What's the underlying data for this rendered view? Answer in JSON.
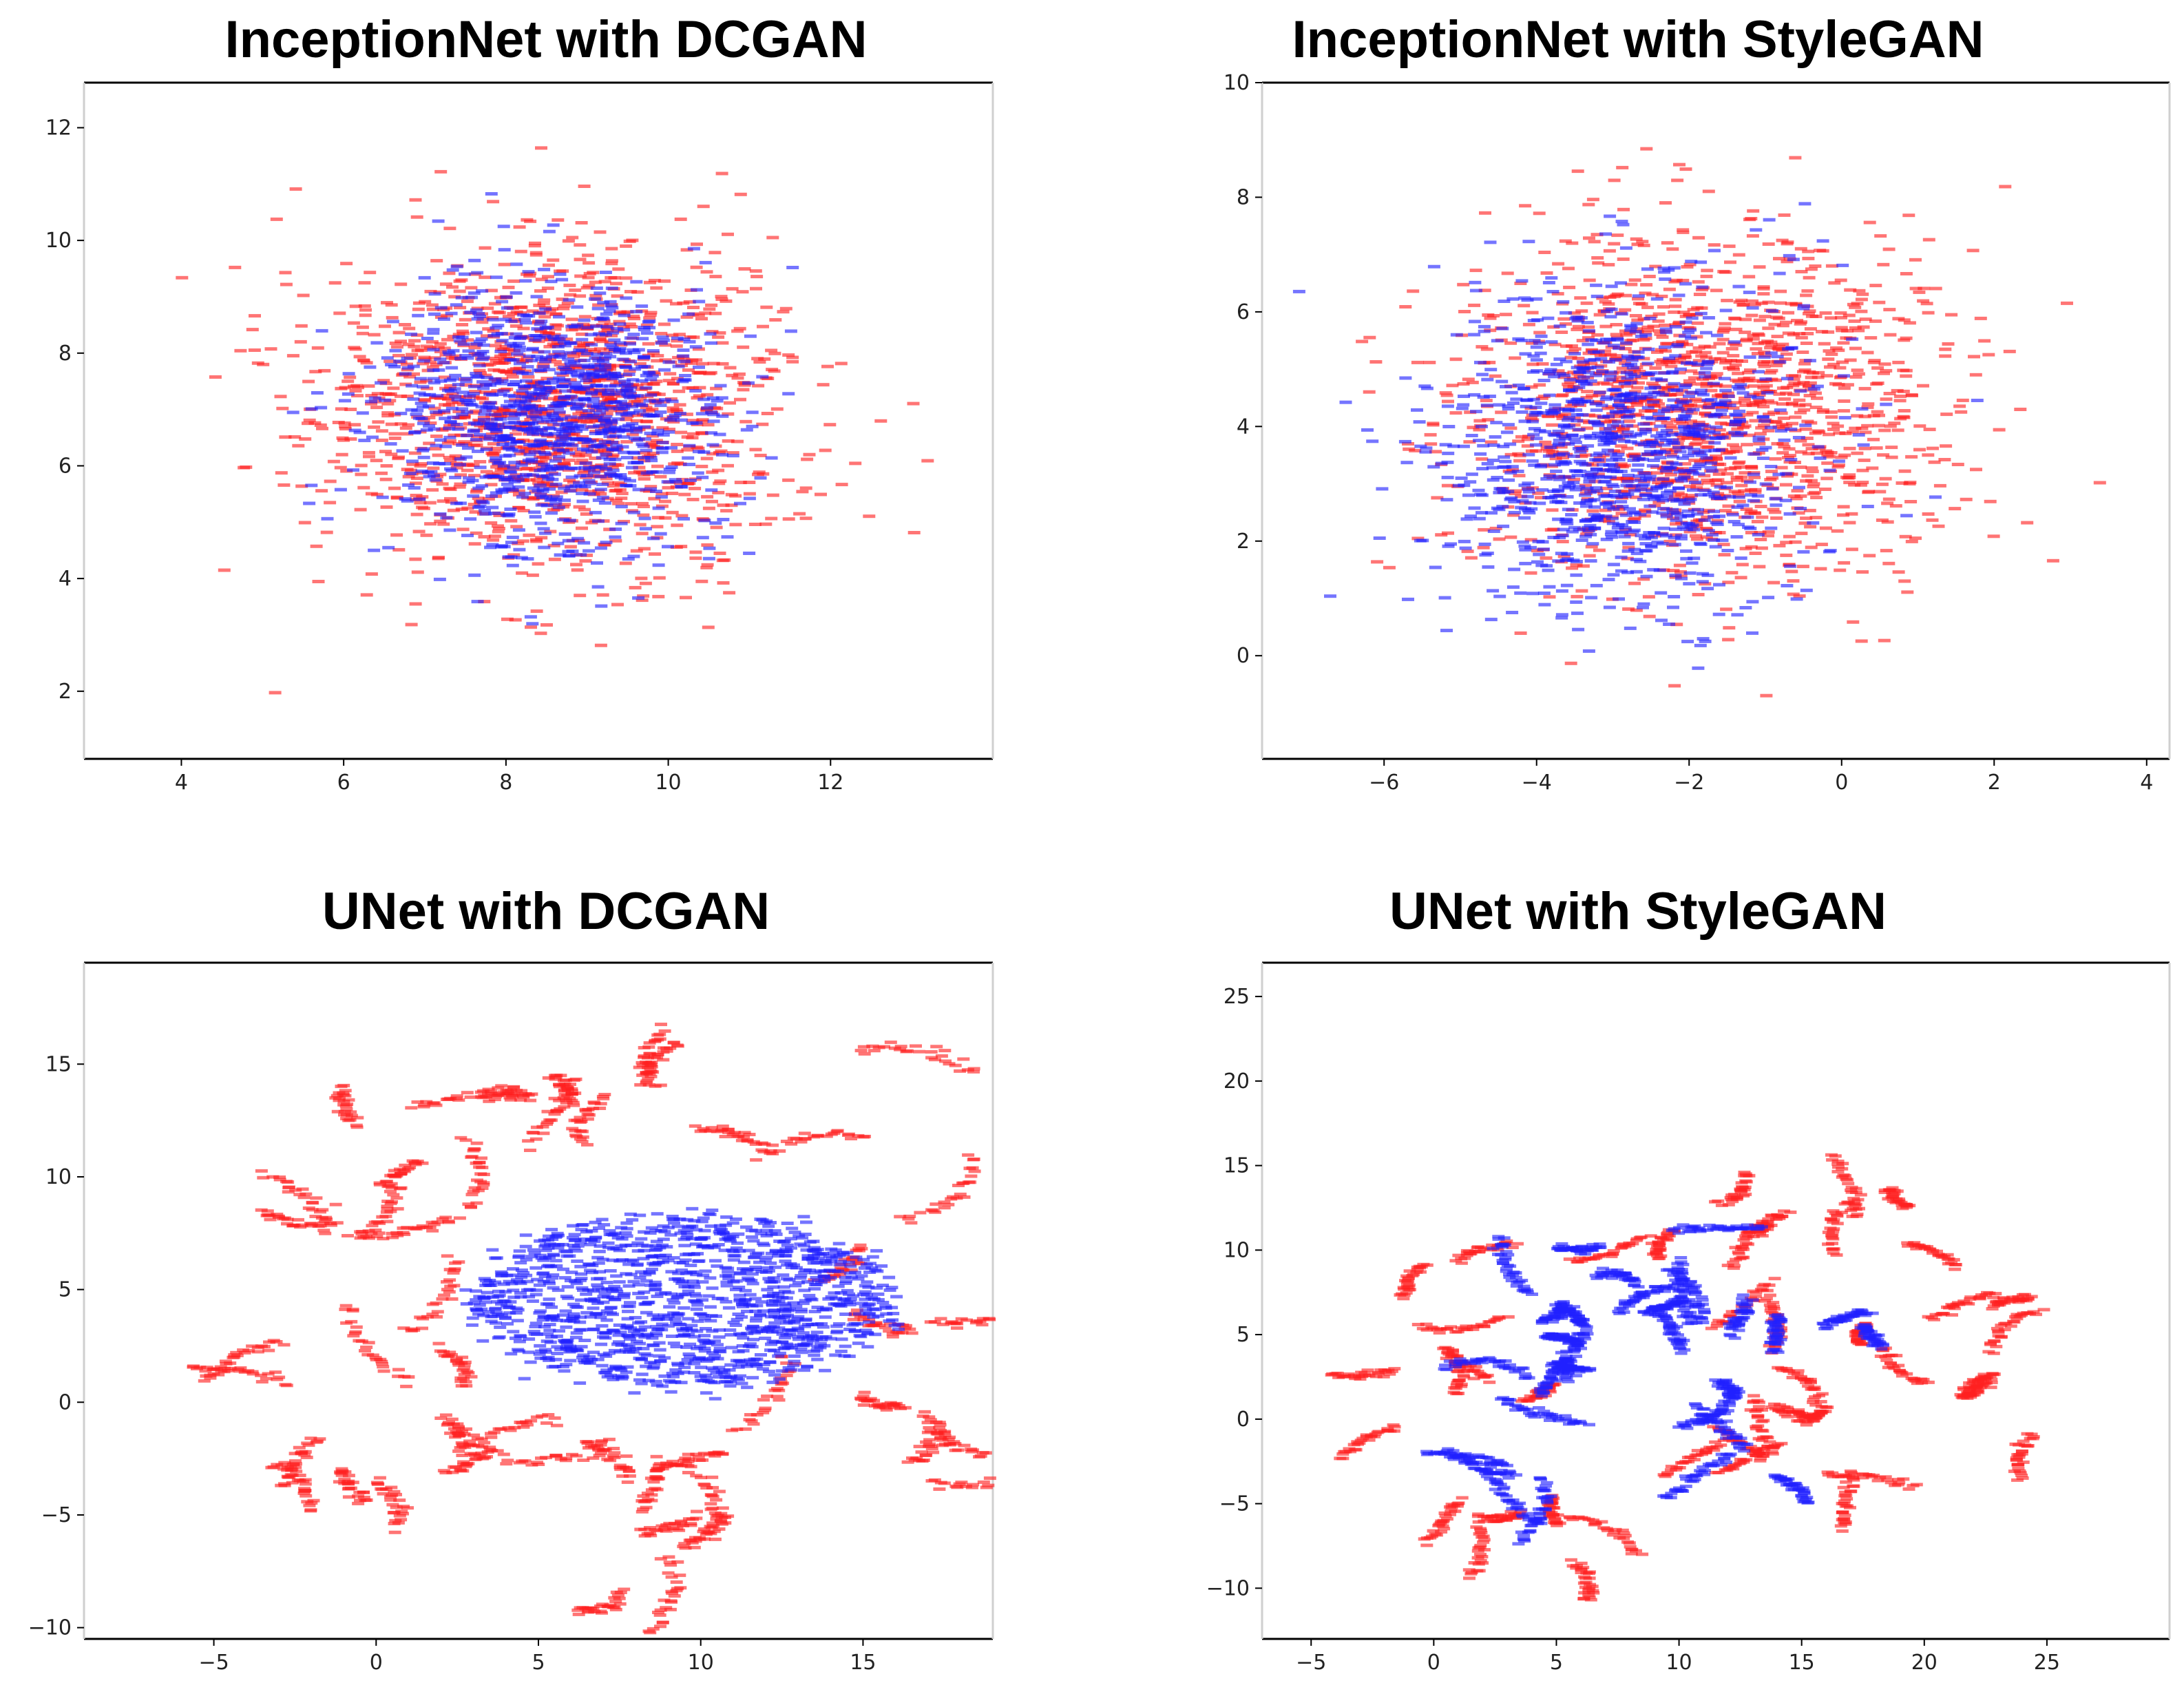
{
  "chart_data": [
    {
      "type": "scatter",
      "title": "InceptionNet with DCGAN",
      "xlabel": "",
      "ylabel": "",
      "xlim": [
        2.8,
        14.0
      ],
      "ylim": [
        0.8,
        12.8
      ],
      "xticks": [
        4,
        6,
        8,
        10,
        12
      ],
      "yticks": [
        2,
        4,
        6,
        8,
        10,
        12
      ],
      "series": [
        {
          "name": "red",
          "color": "#ff2020",
          "pattern": "blob",
          "center": [
            8.6,
            7.0
          ],
          "spread": [
            2.0,
            2.0
          ],
          "count": 1500,
          "clip": [
            [
              3.2,
              13.4
            ],
            [
              1.6,
              12.3
            ]
          ]
        },
        {
          "name": "blue",
          "color": "#2020ff",
          "pattern": "blob",
          "center": [
            8.6,
            6.9
          ],
          "spread": [
            1.5,
            1.7
          ],
          "count": 1100,
          "clip": [
            [
              4.2,
              12.0
            ],
            [
              1.4,
              11.5
            ]
          ]
        }
      ]
    },
    {
      "type": "scatter",
      "title": "InceptionNet with StyleGAN",
      "xlabel": "",
      "ylabel": "",
      "xlim": [
        -7.6,
        4.3
      ],
      "ylim": [
        -1.8,
        10.0
      ],
      "xticks": [
        -6,
        -4,
        -2,
        0,
        2,
        4
      ],
      "yticks": [
        0,
        2,
        4,
        6,
        8,
        10
      ],
      "series": [
        {
          "name": "red",
          "color": "#ff2020",
          "pattern": "blob",
          "center": [
            -1.8,
            4.3
          ],
          "spread": [
            2.2,
            2.2
          ],
          "count": 1500,
          "clip": [
            [
              -6.5,
              3.8
            ],
            [
              -1.4,
              9.2
            ]
          ]
        },
        {
          "name": "blue",
          "color": "#2020ff",
          "pattern": "blob",
          "center": [
            -2.9,
            3.6
          ],
          "spread": [
            1.7,
            2.0
          ],
          "count": 1100,
          "clip": [
            [
              -7.2,
              1.8
            ],
            [
              -0.4,
              9.5
            ]
          ]
        }
      ]
    },
    {
      "type": "scatter",
      "title": "UNet with DCGAN",
      "xlabel": "",
      "ylabel": "",
      "xlim": [
        -9.0,
        19.0
      ],
      "ylim": [
        -10.5,
        19.5
      ],
      "xticks": [
        -5,
        0,
        5,
        10,
        15
      ],
      "yticks": [
        -10,
        -5,
        0,
        5,
        10,
        15
      ],
      "series": [
        {
          "name": "red",
          "color": "#ff2020",
          "pattern": "arcs",
          "center": [
            8.5,
            4.5
          ],
          "radius": [
            5.5,
            14.0
          ],
          "clusters": 48,
          "count": 1400
        },
        {
          "name": "blue",
          "color": "#2020ff",
          "pattern": "box",
          "center": [
            9.5,
            4.5
          ],
          "spread": [
            6.5,
            3.8
          ],
          "count": 1300
        }
      ]
    },
    {
      "type": "scatter",
      "title": "UNet with StyleGAN",
      "xlabel": "",
      "ylabel": "",
      "xlim": [
        -7.0,
        30.0
      ],
      "ylim": [
        -13.0,
        27.0
      ],
      "xticks": [
        -5,
        0,
        5,
        10,
        15,
        20,
        25
      ],
      "yticks": [
        -10,
        -5,
        0,
        5,
        10,
        15,
        20,
        25
      ],
      "series": [
        {
          "name": "red",
          "color": "#ff2020",
          "pattern": "arcs",
          "center": [
            10.5,
            3.0
          ],
          "radius": [
            4.0,
            14.0
          ],
          "clusters": 42,
          "count": 1300
        },
        {
          "name": "blue",
          "color": "#2020ff",
          "pattern": "arcs",
          "center": [
            9.5,
            2.5
          ],
          "radius": [
            2.5,
            10.0
          ],
          "clusters": 30,
          "count": 1200
        }
      ]
    }
  ]
}
